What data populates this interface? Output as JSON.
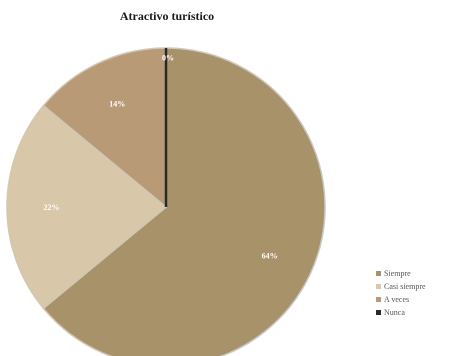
{
  "chart_data": {
    "type": "pie",
    "title": "Atractivo turístico",
    "categories": [
      "Siempre",
      "Casi siempre",
      "A veces",
      "Nunca"
    ],
    "values": [
      64,
      22,
      14,
      0
    ],
    "labels": [
      "64%",
      "22%",
      "14%",
      "0%"
    ],
    "colors": [
      "#a8926a",
      "#d8c7a8",
      "#b89a76",
      "#2a2a2a"
    ],
    "legend_position": "bottom-right"
  }
}
